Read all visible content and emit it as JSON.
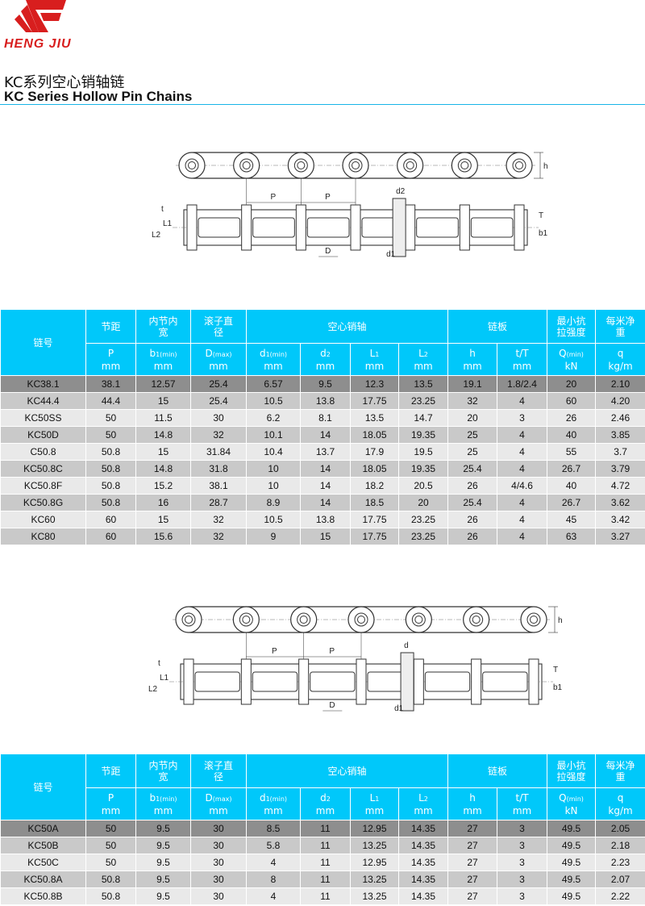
{
  "brand": {
    "name": "HENG JIU",
    "color": "#d81e1e"
  },
  "title_cn": "KC系列空心销轴链",
  "title_en": "KC Series Hollow Pin Chains",
  "accent": "#00c8fa",
  "diagram_labels": {
    "P": "P",
    "d2": "d2",
    "d": "d",
    "h": "h",
    "T": "T",
    "t": "t",
    "b1": "b1",
    "L1": "L1",
    "L2": "L2",
    "D": "D",
    "d1": "d1"
  },
  "header": {
    "row1": [
      "链号",
      "节距",
      "内节内宽",
      "滚子直径",
      "空心销轴",
      "链板",
      "最小抗拉强度",
      "每米净重"
    ],
    "row2": [
      [
        "P",
        "",
        "mm"
      ],
      [
        "b",
        "1(min)",
        "mm"
      ],
      [
        "D",
        "(max)",
        "mm"
      ],
      [
        "d",
        "1(min)",
        "mm"
      ],
      [
        "d",
        "2",
        "mm"
      ],
      [
        "L",
        "1",
        "mm"
      ],
      [
        "L",
        "2",
        "mm"
      ],
      [
        "h",
        "",
        "mm"
      ],
      [
        "t/T",
        "",
        "mm"
      ],
      [
        "Q",
        "(min)",
        "kN"
      ],
      [
        "q",
        "",
        "kg/m"
      ]
    ]
  },
  "table1": [
    [
      "KC38.1",
      "38.1",
      "12.57",
      "25.4",
      "6.57",
      "9.5",
      "12.3",
      "13.5",
      "19.1",
      "1.8/2.4",
      "20",
      "2.10"
    ],
    [
      "KC44.4",
      "44.4",
      "15",
      "25.4",
      "10.5",
      "13.8",
      "17.75",
      "23.25",
      "32",
      "4",
      "60",
      "4.20"
    ],
    [
      "KC50SS",
      "50",
      "11.5",
      "30",
      "6.2",
      "8.1",
      "13.5",
      "14.7",
      "20",
      "3",
      "26",
      "2.46"
    ],
    [
      "KC50D",
      "50",
      "14.8",
      "32",
      "10.1",
      "14",
      "18.05",
      "19.35",
      "25",
      "4",
      "40",
      "3.85"
    ],
    [
      "C50.8",
      "50.8",
      "15",
      "31.84",
      "10.4",
      "13.7",
      "17.9",
      "19.5",
      "25",
      "4",
      "55",
      "3.7"
    ],
    [
      "KC50.8C",
      "50.8",
      "14.8",
      "31.8",
      "10",
      "14",
      "18.05",
      "19.35",
      "25.4",
      "4",
      "26.7",
      "3.79"
    ],
    [
      "KC50.8F",
      "50.8",
      "15.2",
      "38.1",
      "10",
      "14",
      "18.2",
      "20.5",
      "26",
      "4/4.6",
      "40",
      "4.72"
    ],
    [
      "KC50.8G",
      "50.8",
      "16",
      "28.7",
      "8.9",
      "14",
      "18.5",
      "20",
      "25.4",
      "4",
      "26.7",
      "3.62"
    ],
    [
      "KC60",
      "60",
      "15",
      "32",
      "10.5",
      "13.8",
      "17.75",
      "23.25",
      "26",
      "4",
      "45",
      "3.42"
    ],
    [
      "KC80",
      "60",
      "15.6",
      "32",
      "9",
      "15",
      "17.75",
      "23.25",
      "26",
      "4",
      "63",
      "3.27"
    ]
  ],
  "table2": [
    [
      "KC50A",
      "50",
      "9.5",
      "30",
      "8.5",
      "11",
      "12.95",
      "14.35",
      "27",
      "3",
      "49.5",
      "2.05"
    ],
    [
      "KC50B",
      "50",
      "9.5",
      "30",
      "5.8",
      "11",
      "13.25",
      "14.35",
      "27",
      "3",
      "49.5",
      "2.18"
    ],
    [
      "KC50C",
      "50",
      "9.5",
      "30",
      "4",
      "11",
      "12.95",
      "14.35",
      "27",
      "3",
      "49.5",
      "2.23"
    ],
    [
      "KC50.8A",
      "50.8",
      "9.5",
      "30",
      "8",
      "11",
      "13.25",
      "14.35",
      "27",
      "3",
      "49.5",
      "2.07"
    ],
    [
      "KC50.8B",
      "50.8",
      "9.5",
      "30",
      "4",
      "11",
      "13.25",
      "14.35",
      "27",
      "3",
      "49.5",
      "2.22"
    ]
  ]
}
